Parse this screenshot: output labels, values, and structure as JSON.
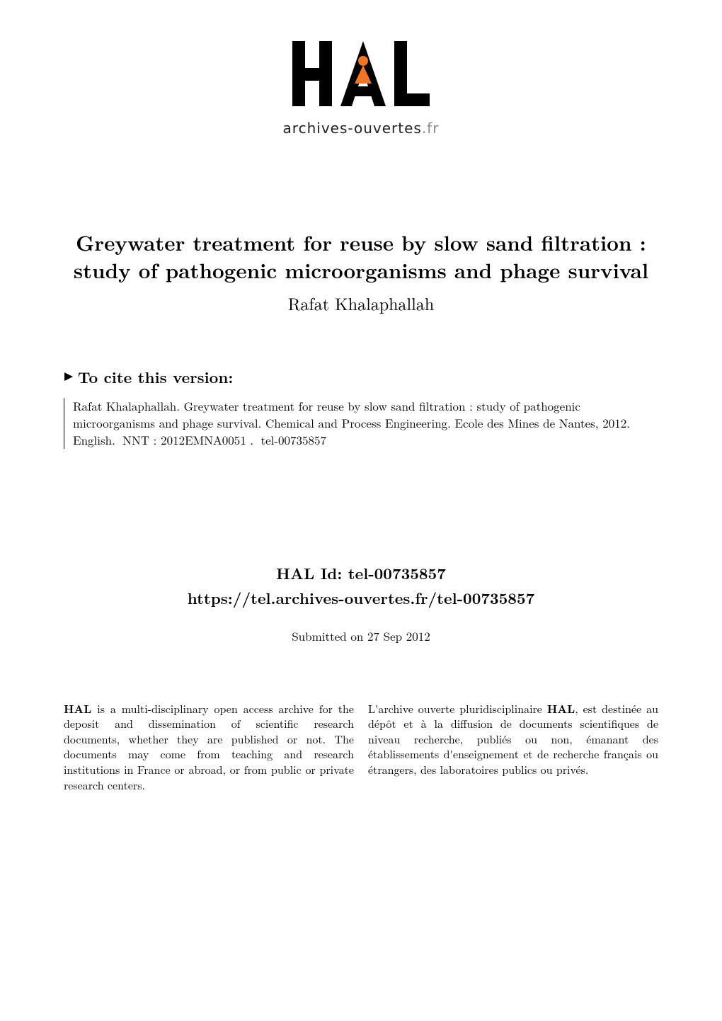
{
  "logo": {
    "text": "HAL",
    "subtext_prefix": "archives-ouvertes",
    "subtext_suffix": ".fr",
    "color_black": "#000000",
    "color_orange": "#f47521",
    "color_grey": "#8a8a8a"
  },
  "title": {
    "line": "Greywater treatment for reuse by slow sand filtration : study of pathogenic microorganisms and phage survival",
    "author": "Rafat Khalaphallah"
  },
  "cite": {
    "heading": "To cite this version:",
    "text": "Rafat Khalaphallah. Greywater treatment for reuse by slow sand filtration : study of pathogenic microorganisms and phage survival. Chemical and Process Engineering. Ecole des Mines de Nantes, 2012. English.  NNT : 2012EMNA0051 .  tel-00735857"
  },
  "halid": {
    "label": "HAL Id: tel-00735857",
    "url": "https://tel.archives-ouvertes.fr/tel-00735857"
  },
  "submitted": "Submitted on 27 Sep 2012",
  "columns": {
    "left_html": "<b>HAL</b> is a multi-disciplinary open access archive for the deposit and dissemination of scientific research documents, whether they are published or not. The documents may come from teaching and research institutions in France or abroad, or from public or private research centers.",
    "right_html": "L'archive ouverte pluridisciplinaire <b>HAL</b>, est destinée au dépôt et à la diffusion de documents scientifiques de niveau recherche, publiés ou non, émanant des établissements d'enseignement et de recherche français ou étrangers, des laboratoires publics ou privés."
  },
  "colors": {
    "text": "#000000",
    "background": "#ffffff"
  }
}
